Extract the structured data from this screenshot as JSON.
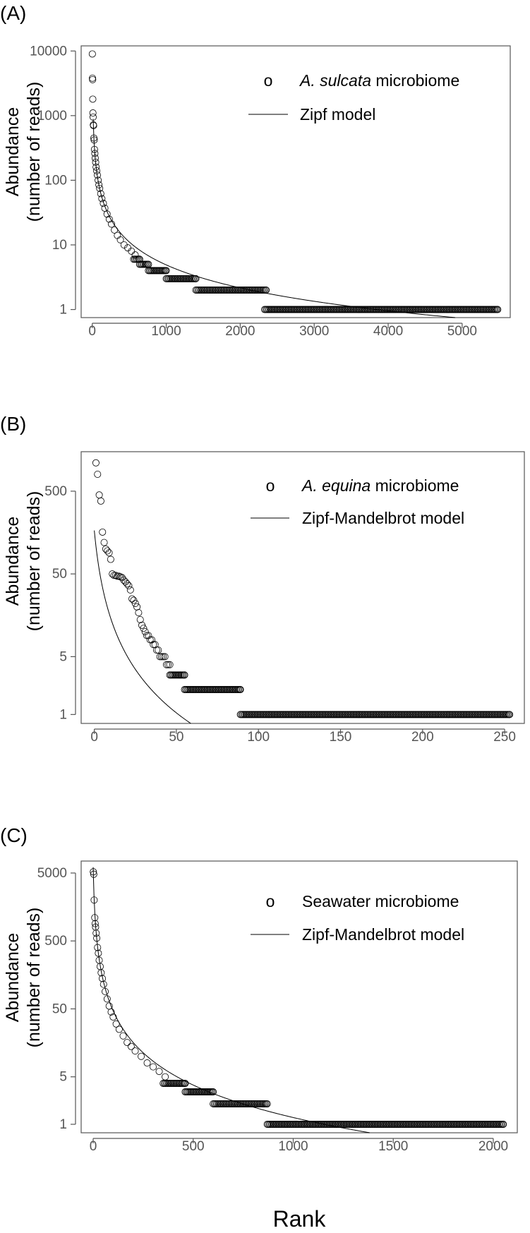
{
  "figure": {
    "xlabel": "Rank"
  },
  "chart_data": [
    {
      "type": "scatter",
      "panel_label": "(A)",
      "ylabel_line1": "Abundance",
      "ylabel_line2": "(number of reads)",
      "y_scale": "log",
      "xlim": [
        -150,
        5650
      ],
      "ylim": [
        0.75,
        12000
      ],
      "x_ticks": [
        0,
        1000,
        2000,
        3000,
        4000,
        5000
      ],
      "y_ticks": [
        1,
        10,
        100,
        1000,
        10000
      ],
      "legend_position": "top-right",
      "legend": {
        "points_symbol": "o",
        "points_prefix_italic": "A. sulcata",
        "points_suffix": " microbiome",
        "line_label": "Zipf model"
      },
      "points_head": [
        [
          1,
          9000
        ],
        [
          3,
          3800
        ],
        [
          5,
          3600
        ],
        [
          7,
          1800
        ],
        [
          9,
          1100
        ],
        [
          12,
          950
        ],
        [
          15,
          720
        ],
        [
          18,
          700
        ],
        [
          22,
          450
        ],
        [
          26,
          420
        ],
        [
          30,
          300
        ],
        [
          35,
          260
        ],
        [
          40,
          220
        ],
        [
          46,
          190
        ],
        [
          52,
          160
        ],
        [
          60,
          140
        ],
        [
          70,
          120
        ],
        [
          80,
          100
        ],
        [
          90,
          85
        ],
        [
          100,
          75
        ],
        [
          115,
          62
        ],
        [
          130,
          52
        ],
        [
          150,
          44
        ],
        [
          170,
          37
        ],
        [
          200,
          30
        ],
        [
          230,
          25
        ],
        [
          260,
          21
        ],
        [
          300,
          17
        ],
        [
          340,
          14
        ],
        [
          380,
          12
        ],
        [
          430,
          10
        ],
        [
          480,
          9
        ],
        [
          530,
          8
        ],
        [
          580,
          7
        ]
      ],
      "plateaus": [
        [
          560,
          640,
          6
        ],
        [
          640,
          760,
          5
        ],
        [
          760,
          1000,
          4
        ],
        [
          1000,
          1400,
          3
        ],
        [
          1400,
          2350,
          2
        ],
        [
          2330,
          5480,
          1
        ]
      ],
      "model": {
        "kind": "zipf",
        "c": 17000,
        "gamma": 1.18,
        "x_start": 1,
        "x_end": 5600
      }
    },
    {
      "type": "scatter",
      "panel_label": "(B)",
      "ylabel_line1": "Abundance",
      "ylabel_line2": "(number of reads)",
      "y_scale": "log",
      "xlim": [
        -8,
        262
      ],
      "ylim": [
        0.78,
        1500
      ],
      "x_ticks": [
        0,
        50,
        100,
        150,
        200,
        250
      ],
      "y_ticks": [
        1,
        5,
        50,
        500
      ],
      "legend_position": "top-right",
      "legend": {
        "points_symbol": "o",
        "points_prefix_italic": "A. equina",
        "points_suffix": " microbiome",
        "line_label": "Zipf-Mandelbrot model"
      },
      "points_head": [
        [
          1,
          1100
        ],
        [
          2,
          800
        ],
        [
          3,
          450
        ],
        [
          4,
          380
        ],
        [
          5,
          160
        ],
        [
          6,
          120
        ],
        [
          7,
          100
        ],
        [
          8,
          95
        ],
        [
          9,
          90
        ],
        [
          10,
          75
        ],
        [
          11,
          50
        ],
        [
          12,
          48
        ],
        [
          13,
          48
        ],
        [
          14,
          47
        ],
        [
          15,
          47
        ],
        [
          16,
          46
        ],
        [
          17,
          45
        ],
        [
          18,
          42
        ],
        [
          19,
          40
        ],
        [
          20,
          38
        ],
        [
          21,
          36
        ],
        [
          22,
          32
        ],
        [
          23,
          25
        ],
        [
          24,
          24
        ],
        [
          25,
          22
        ],
        [
          26,
          20
        ],
        [
          27,
          17
        ],
        [
          28,
          14
        ],
        [
          29,
          12
        ],
        [
          30,
          11
        ],
        [
          31,
          10
        ],
        [
          32,
          9
        ],
        [
          33,
          9
        ],
        [
          34,
          8
        ],
        [
          35,
          8
        ],
        [
          36,
          7
        ],
        [
          37,
          7
        ],
        [
          38,
          6
        ],
        [
          39,
          6
        ],
        [
          40,
          5
        ],
        [
          41,
          5
        ],
        [
          42,
          5
        ],
        [
          43,
          5
        ],
        [
          44,
          4
        ],
        [
          45,
          4
        ],
        [
          46,
          4
        ]
      ],
      "plateaus": [
        [
          46,
          55,
          3
        ],
        [
          55,
          89,
          2
        ],
        [
          89,
          253,
          1
        ]
      ],
      "model": {
        "kind": "zipf-mandelbrot",
        "c": 2500,
        "beta": 4,
        "gamma": 1.95,
        "x_start": 0,
        "x_end": 260
      }
    },
    {
      "type": "scatter",
      "panel_label": "(C)",
      "ylabel_line1": "Abundance",
      "ylabel_line2": "(number of reads)",
      "y_scale": "log",
      "xlim": [
        -60,
        2120
      ],
      "ylim": [
        0.75,
        7500
      ],
      "x_ticks": [
        0,
        500,
        1000,
        1500,
        2000
      ],
      "y_ticks": [
        1,
        5,
        50,
        500,
        5000
      ],
      "legend_position": "top-right",
      "legend": {
        "points_symbol": "o",
        "points_prefix_italic": "",
        "points_suffix": "Seawater microbiome",
        "line_label": "Zipf-Mandelbrot model"
      },
      "points_head": [
        [
          1,
          5200
        ],
        [
          3,
          4800
        ],
        [
          5,
          2000
        ],
        [
          8,
          1100
        ],
        [
          10,
          900
        ],
        [
          12,
          800
        ],
        [
          15,
          650
        ],
        [
          18,
          550
        ],
        [
          22,
          400
        ],
        [
          26,
          330
        ],
        [
          30,
          260
        ],
        [
          35,
          210
        ],
        [
          40,
          170
        ],
        [
          46,
          140
        ],
        [
          52,
          115
        ],
        [
          60,
          90
        ],
        [
          70,
          70
        ],
        [
          80,
          55
        ],
        [
          90,
          45
        ],
        [
          100,
          38
        ],
        [
          115,
          30
        ],
        [
          130,
          25
        ],
        [
          150,
          20
        ],
        [
          170,
          16
        ],
        [
          190,
          14
        ],
        [
          210,
          12
        ],
        [
          240,
          10
        ],
        [
          270,
          8
        ],
        [
          300,
          7
        ],
        [
          330,
          6
        ],
        [
          360,
          5
        ]
      ],
      "plateaus": [
        [
          350,
          460,
          4
        ],
        [
          460,
          600,
          3
        ],
        [
          600,
          870,
          2
        ],
        [
          870,
          2050,
          1
        ]
      ],
      "model": {
        "kind": "zipf-mandelbrot",
        "c": 80000,
        "beta": 5,
        "gamma": 1.6,
        "x_start": 0,
        "x_end": 2120
      }
    }
  ]
}
